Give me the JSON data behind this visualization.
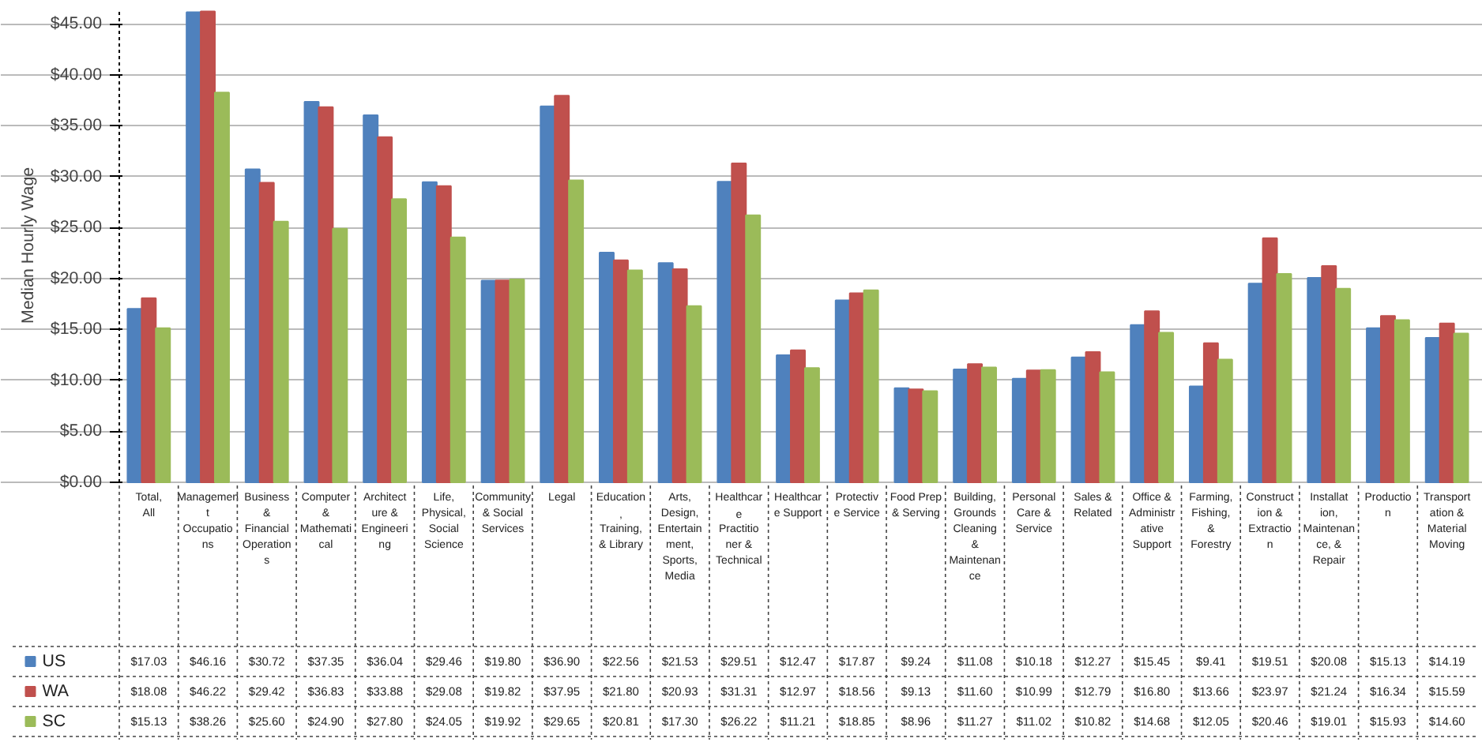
{
  "chart_data": {
    "type": "bar",
    "ylabel": "Median Hourly Wage",
    "categories": [
      "Total, All",
      "Management Occupations",
      "Business & Financial Operations",
      "Computer & Mathematical",
      "Architecture & Engineering",
      "Life, Physical, Social Science",
      "Community & Social Services",
      "Legal",
      "Education, Training, & Library",
      "Arts, Design, Entertainment, Sports, Media",
      "Healthcare Practitioner & Technical",
      "Healthcare Support",
      "Protective Service",
      "Food Prep & Serving",
      "Building, Grounds Cleaning & Maintenance",
      "Personal Care & Service",
      "Sales & Related",
      "Office & Administrative Support",
      "Farming, Fishing, & Forestry",
      "Construction & Extraction",
      "Installation, Maintenance, & Repair",
      "Production",
      "Transportation & Material Moving"
    ],
    "series": [
      {
        "name": "US",
        "color": "#4f81bd",
        "values": [
          17.03,
          46.16,
          30.72,
          37.35,
          36.04,
          29.46,
          19.8,
          36.9,
          22.56,
          21.53,
          29.51,
          12.47,
          17.87,
          9.24,
          11.08,
          10.18,
          12.27,
          15.45,
          9.41,
          19.51,
          20.08,
          15.13,
          14.19
        ],
        "value_labels": [
          "$17.03",
          "$46.16",
          "$30.72",
          "$37.35",
          "$36.04",
          "$29.46",
          "$19.80",
          "$36.90",
          "$22.56",
          "$21.53",
          "$29.51",
          "$12.47",
          "$17.87",
          "$9.24",
          "$11.08",
          "$10.18",
          "$12.27",
          "$15.45",
          "$9.41",
          "$19.51",
          "$20.08",
          "$15.13",
          "$14.19"
        ]
      },
      {
        "name": "WA",
        "color": "#c0504d",
        "values": [
          18.08,
          46.22,
          29.42,
          36.83,
          33.88,
          29.08,
          19.82,
          37.95,
          21.8,
          20.93,
          31.31,
          12.97,
          18.56,
          9.13,
          11.6,
          10.99,
          12.79,
          16.8,
          13.66,
          23.97,
          21.24,
          16.34,
          15.59
        ],
        "value_labels": [
          "$18.08",
          "$46.22",
          "$29.42",
          "$36.83",
          "$33.88",
          "$29.08",
          "$19.82",
          "$37.95",
          "$21.80",
          "$20.93",
          "$31.31",
          "$12.97",
          "$18.56",
          "$9.13",
          "$11.60",
          "$10.99",
          "$12.79",
          "$16.80",
          "$13.66",
          "$23.97",
          "$21.24",
          "$16.34",
          "$15.59"
        ]
      },
      {
        "name": "SC",
        "color": "#9bbb59",
        "values": [
          15.13,
          38.26,
          25.6,
          24.9,
          27.8,
          24.05,
          19.92,
          29.65,
          20.81,
          17.3,
          26.22,
          11.21,
          18.85,
          8.96,
          11.27,
          11.02,
          10.82,
          14.68,
          12.05,
          20.46,
          19.01,
          15.93,
          14.6
        ],
        "value_labels": [
          "$15.13",
          "$38.26",
          "$25.60",
          "$24.90",
          "$27.80",
          "$24.05",
          "$19.92",
          "$29.65",
          "$20.81",
          "$17.30",
          "$26.22",
          "$11.21",
          "$18.85",
          "$8.96",
          "$11.27",
          "$11.02",
          "$10.82",
          "$14.68",
          "$12.05",
          "$20.46",
          "$19.01",
          "$15.93",
          "$14.60"
        ]
      }
    ],
    "ylim": [
      0,
      46.5
    ],
    "yticks": [
      {
        "value": 0,
        "label": "$0.00"
      },
      {
        "value": 5,
        "label": "$5.00"
      },
      {
        "value": 10,
        "label": "$10.00"
      },
      {
        "value": 15,
        "label": "$15.00"
      },
      {
        "value": 20,
        "label": "$20.00"
      },
      {
        "value": 25,
        "label": "$25.00"
      },
      {
        "value": 30,
        "label": "$30.00"
      },
      {
        "value": 35,
        "label": "$35.00"
      },
      {
        "value": 40,
        "label": "$40.00"
      },
      {
        "value": 45,
        "label": "$45.00"
      }
    ],
    "grid": "y",
    "legend": "bottom left",
    "data_labels": true
  }
}
